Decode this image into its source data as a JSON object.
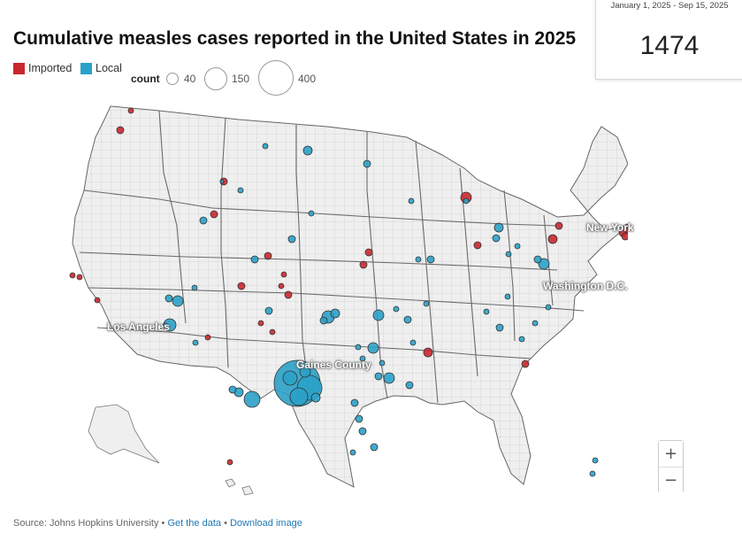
{
  "title": "Cumulative measles cases reported in the United States in 2025",
  "legend": {
    "types": [
      {
        "label": "Imported",
        "color": "#c8282d"
      },
      {
        "label": "Local",
        "color": "#2ba1c8"
      }
    ],
    "count_label": "count",
    "sizes": [
      {
        "value": 40,
        "label": "40"
      },
      {
        "value": 150,
        "label": "150"
      },
      {
        "value": 400,
        "label": "400"
      }
    ]
  },
  "counter": {
    "date_range": "January 1, 2025 - Sep 15, 2025",
    "total": "1474"
  },
  "map": {
    "land_color": "#eeeeee",
    "border_color": "#777777",
    "cities": [
      "New York",
      "Washington D.C.",
      "Los Angeles",
      "Gaines County"
    ],
    "marker_colors": {
      "imported": "#c8282d",
      "local": "#2ba1c8",
      "outline": "#333333"
    }
  },
  "zoom": {
    "in_label": "+",
    "out_label": "−"
  },
  "footer": {
    "source": "Source: Johns Hopkins University",
    "separator": "•",
    "get_data": "Get the data",
    "download": "Download image"
  }
}
